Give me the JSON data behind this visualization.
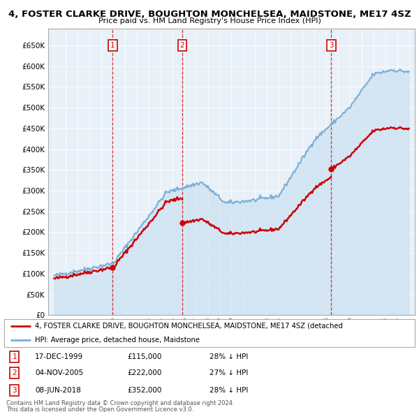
{
  "title": "4, FOSTER CLARKE DRIVE, BOUGHTON MONCHELSEA, MAIDSTONE, ME17 4SZ",
  "subtitle": "Price paid vs. HM Land Registry's House Price Index (HPI)",
  "yticks": [
    0,
    50000,
    100000,
    150000,
    200000,
    250000,
    300000,
    350000,
    400000,
    450000,
    500000,
    550000,
    600000,
    650000
  ],
  "ytick_labels": [
    "£0",
    "£50K",
    "£100K",
    "£150K",
    "£200K",
    "£250K",
    "£300K",
    "£350K",
    "£400K",
    "£450K",
    "£500K",
    "£550K",
    "£600K",
    "£650K"
  ],
  "ylim": [
    0,
    690000
  ],
  "sale_color": "#cc0000",
  "hpi_color": "#7aaed6",
  "hpi_fill_color": "#c5dff0",
  "sale_label": "4, FOSTER CLARKE DRIVE, BOUGHTON MONCHELSEA, MAIDSTONE, ME17 4SZ (detached",
  "hpi_label": "HPI: Average price, detached house, Maidstone",
  "transactions": [
    {
      "num": 1,
      "date": "17-DEC-1999",
      "price": 115000,
      "pct": "28% ↓ HPI",
      "x": 1999.96
    },
    {
      "num": 2,
      "date": "04-NOV-2005",
      "price": 222000,
      "pct": "27% ↓ HPI",
      "x": 2005.84
    },
    {
      "num": 3,
      "date": "08-JUN-2018",
      "price": 352000,
      "pct": "28% ↓ HPI",
      "x": 2018.44
    }
  ],
  "footer1": "Contains HM Land Registry data © Crown copyright and database right 2024.",
  "footer2": "This data is licensed under the Open Government Licence v3.0.",
  "background_color": "#ffffff",
  "chart_bg_color": "#e8f0f8",
  "grid_color": "#ffffff"
}
